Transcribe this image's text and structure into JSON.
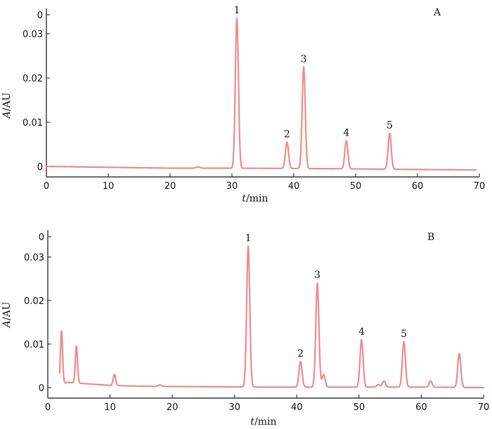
{
  "chart_data": [
    {
      "type": "line",
      "panel_label": "A",
      "xlabel_italic": "t",
      "xlabel_rest": "/min",
      "ylabel_italic": "A",
      "ylabel_rest": "/AU",
      "xlim": [
        0,
        70
      ],
      "ylim": [
        -0.001,
        0.0365
      ],
      "x_ticks": [
        0,
        10,
        20,
        30,
        40,
        50,
        60,
        70
      ],
      "y_ticks": [
        0,
        0.01,
        0.02,
        0.03
      ],
      "y_tick_labels": [
        "0",
        "0.01",
        "0.02",
        "0.03"
      ],
      "y_top_label": "0",
      "baseline": [
        [
          0,
          0
        ],
        [
          10,
          -0.0002
        ],
        [
          20,
          -0.0004
        ],
        [
          30,
          -0.0004
        ],
        [
          45,
          -0.0005
        ],
        [
          60,
          -0.0007
        ],
        [
          69.5,
          -0.0008
        ]
      ],
      "peaks": [
        {
          "label": "1",
          "x": 30.8,
          "y": 0.0335,
          "width": 0.25
        },
        {
          "label": "2",
          "x": 38.9,
          "y": 0.0055,
          "width": 0.25
        },
        {
          "label": "3",
          "x": 41.6,
          "y": 0.0225,
          "width": 0.25
        },
        {
          "label": "4",
          "x": 48.5,
          "y": 0.0058,
          "width": 0.25
        },
        {
          "label": "5",
          "x": 55.5,
          "y": 0.0075,
          "width": 0.25
        }
      ],
      "minor_peaks": [
        {
          "x": 24.5,
          "y": -0.0001,
          "width": 0.3
        }
      ]
    },
    {
      "type": "line",
      "panel_label": "B",
      "xlabel_italic": "t",
      "xlabel_rest": "/min",
      "ylabel_italic": "A",
      "ylabel_rest": "/AU",
      "xlim": [
        0,
        70
      ],
      "ylim": [
        -0.0008,
        0.0365
      ],
      "x_ticks": [
        0,
        10,
        20,
        30,
        40,
        50,
        60,
        70
      ],
      "y_ticks": [
        0,
        0.01,
        0.02,
        0.03
      ],
      "y_tick_labels": [
        "0",
        "0.01",
        "0.02",
        "0.03"
      ],
      "y_top_label": "0",
      "baseline": [
        [
          1.9,
          0.0002
        ],
        [
          3,
          0.0012
        ],
        [
          6,
          0.0009
        ],
        [
          10,
          0.0005
        ],
        [
          15,
          0.0003
        ],
        [
          25,
          0.0002
        ],
        [
          35,
          0.0001
        ],
        [
          50,
          0.0001
        ],
        [
          60,
          0.0001
        ],
        [
          70,
          0.0
        ]
      ],
      "peaks": [
        {
          "label": "1",
          "x": 32.2,
          "y": 0.0325,
          "width": 0.25
        },
        {
          "label": "2",
          "x": 40.6,
          "y": 0.006,
          "width": 0.25
        },
        {
          "label": "3",
          "x": 43.3,
          "y": 0.024,
          "width": 0.25
        },
        {
          "label": "4",
          "x": 50.4,
          "y": 0.011,
          "width": 0.25
        },
        {
          "label": "5",
          "x": 57.2,
          "y": 0.0105,
          "width": 0.25
        }
      ],
      "minor_peaks": [
        {
          "x": 2.2,
          "y": 0.013,
          "width": 0.18
        },
        {
          "x": 4.6,
          "y": 0.0095,
          "width": 0.18
        },
        {
          "x": 10.7,
          "y": 0.003,
          "width": 0.2
        },
        {
          "x": 18.0,
          "y": 0.0006,
          "width": 0.3
        },
        {
          "x": 44.3,
          "y": 0.003,
          "width": 0.25
        },
        {
          "x": 53.1,
          "y": 0.0007,
          "width": 0.25
        },
        {
          "x": 54.0,
          "y": 0.0015,
          "width": 0.25
        },
        {
          "x": 61.5,
          "y": 0.0015,
          "width": 0.25
        },
        {
          "x": 66.1,
          "y": 0.0078,
          "width": 0.25
        }
      ]
    }
  ]
}
